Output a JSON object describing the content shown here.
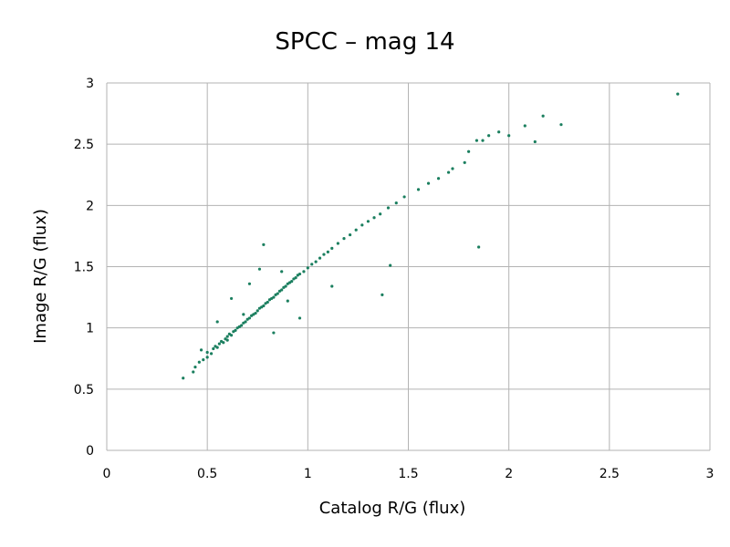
{
  "chart_data": {
    "type": "scatter",
    "title": "SPCC – mag 14",
    "xlabel": "Catalog R/G (flux)",
    "ylabel": "Image R/G (flux)",
    "xlim": [
      0,
      3
    ],
    "ylim": [
      0,
      3
    ],
    "xticks": [
      "0",
      "0.5",
      "1",
      "1.5",
      "2",
      "2.5",
      "3"
    ],
    "yticks": [
      "0",
      "0.5",
      "1",
      "1.5",
      "2",
      "2.5",
      "3"
    ],
    "grid": true,
    "marker_color": "#1b7f5f",
    "series": [
      {
        "points": [
          [
            0.38,
            0.59
          ],
          [
            0.43,
            0.64
          ],
          [
            0.44,
            0.68
          ],
          [
            0.46,
            0.72
          ],
          [
            0.48,
            0.74
          ],
          [
            0.5,
            0.76
          ],
          [
            0.5,
            0.8
          ],
          [
            0.52,
            0.79
          ],
          [
            0.53,
            0.83
          ],
          [
            0.54,
            0.85
          ],
          [
            0.55,
            0.84
          ],
          [
            0.56,
            0.87
          ],
          [
            0.57,
            0.89
          ],
          [
            0.58,
            0.88
          ],
          [
            0.59,
            0.91
          ],
          [
            0.6,
            0.93
          ],
          [
            0.6,
            0.9
          ],
          [
            0.61,
            0.95
          ],
          [
            0.62,
            0.94
          ],
          [
            0.63,
            0.97
          ],
          [
            0.64,
            0.98
          ],
          [
            0.65,
            1.0
          ],
          [
            0.66,
            1.01
          ],
          [
            0.67,
            1.02
          ],
          [
            0.68,
            1.04
          ],
          [
            0.69,
            1.05
          ],
          [
            0.7,
            1.07
          ],
          [
            0.71,
            1.08
          ],
          [
            0.72,
            1.1
          ],
          [
            0.73,
            1.11
          ],
          [
            0.74,
            1.12
          ],
          [
            0.75,
            1.14
          ],
          [
            0.76,
            1.16
          ],
          [
            0.77,
            1.17
          ],
          [
            0.78,
            1.18
          ],
          [
            0.79,
            1.2
          ],
          [
            0.8,
            1.21
          ],
          [
            0.81,
            1.23
          ],
          [
            0.82,
            1.24
          ],
          [
            0.83,
            1.25
          ],
          [
            0.84,
            1.27
          ],
          [
            0.85,
            1.28
          ],
          [
            0.86,
            1.3
          ],
          [
            0.87,
            1.31
          ],
          [
            0.88,
            1.33
          ],
          [
            0.89,
            1.34
          ],
          [
            0.9,
            1.36
          ],
          [
            0.91,
            1.37
          ],
          [
            0.92,
            1.38
          ],
          [
            0.93,
            1.4
          ],
          [
            0.94,
            1.41
          ],
          [
            0.95,
            1.43
          ],
          [
            0.96,
            1.44
          ],
          [
            0.98,
            1.46
          ],
          [
            1.0,
            1.49
          ],
          [
            1.02,
            1.52
          ],
          [
            1.04,
            1.54
          ],
          [
            1.06,
            1.57
          ],
          [
            1.08,
            1.6
          ],
          [
            1.1,
            1.62
          ],
          [
            1.12,
            1.65
          ],
          [
            1.15,
            1.69
          ],
          [
            1.18,
            1.73
          ],
          [
            1.21,
            1.76
          ],
          [
            1.24,
            1.8
          ],
          [
            1.27,
            1.84
          ],
          [
            1.3,
            1.87
          ],
          [
            1.33,
            1.9
          ],
          [
            1.36,
            1.93
          ],
          [
            1.4,
            1.98
          ],
          [
            1.44,
            2.02
          ],
          [
            1.48,
            2.07
          ],
          [
            1.55,
            2.13
          ],
          [
            1.6,
            2.18
          ],
          [
            1.65,
            2.22
          ],
          [
            1.7,
            2.27
          ],
          [
            1.72,
            2.3
          ],
          [
            1.78,
            2.35
          ],
          [
            1.8,
            2.44
          ],
          [
            1.84,
            2.53
          ],
          [
            1.87,
            2.53
          ],
          [
            1.9,
            2.57
          ],
          [
            1.95,
            2.6
          ],
          [
            2.0,
            2.57
          ],
          [
            2.08,
            2.65
          ],
          [
            2.13,
            2.52
          ],
          [
            2.17,
            2.73
          ],
          [
            2.26,
            2.66
          ],
          [
            2.84,
            2.91
          ],
          [
            1.85,
            1.66
          ],
          [
            1.41,
            1.51
          ],
          [
            1.37,
            1.27
          ],
          [
            1.12,
            1.34
          ],
          [
            0.96,
            1.08
          ],
          [
            0.83,
            0.96
          ],
          [
            0.78,
            1.68
          ],
          [
            0.62,
            1.24
          ],
          [
            0.55,
            1.05
          ],
          [
            0.47,
            0.82
          ],
          [
            0.76,
            1.48
          ],
          [
            0.71,
            1.36
          ],
          [
            0.68,
            1.11
          ],
          [
            0.9,
            1.22
          ],
          [
            0.87,
            1.46
          ]
        ]
      }
    ]
  }
}
